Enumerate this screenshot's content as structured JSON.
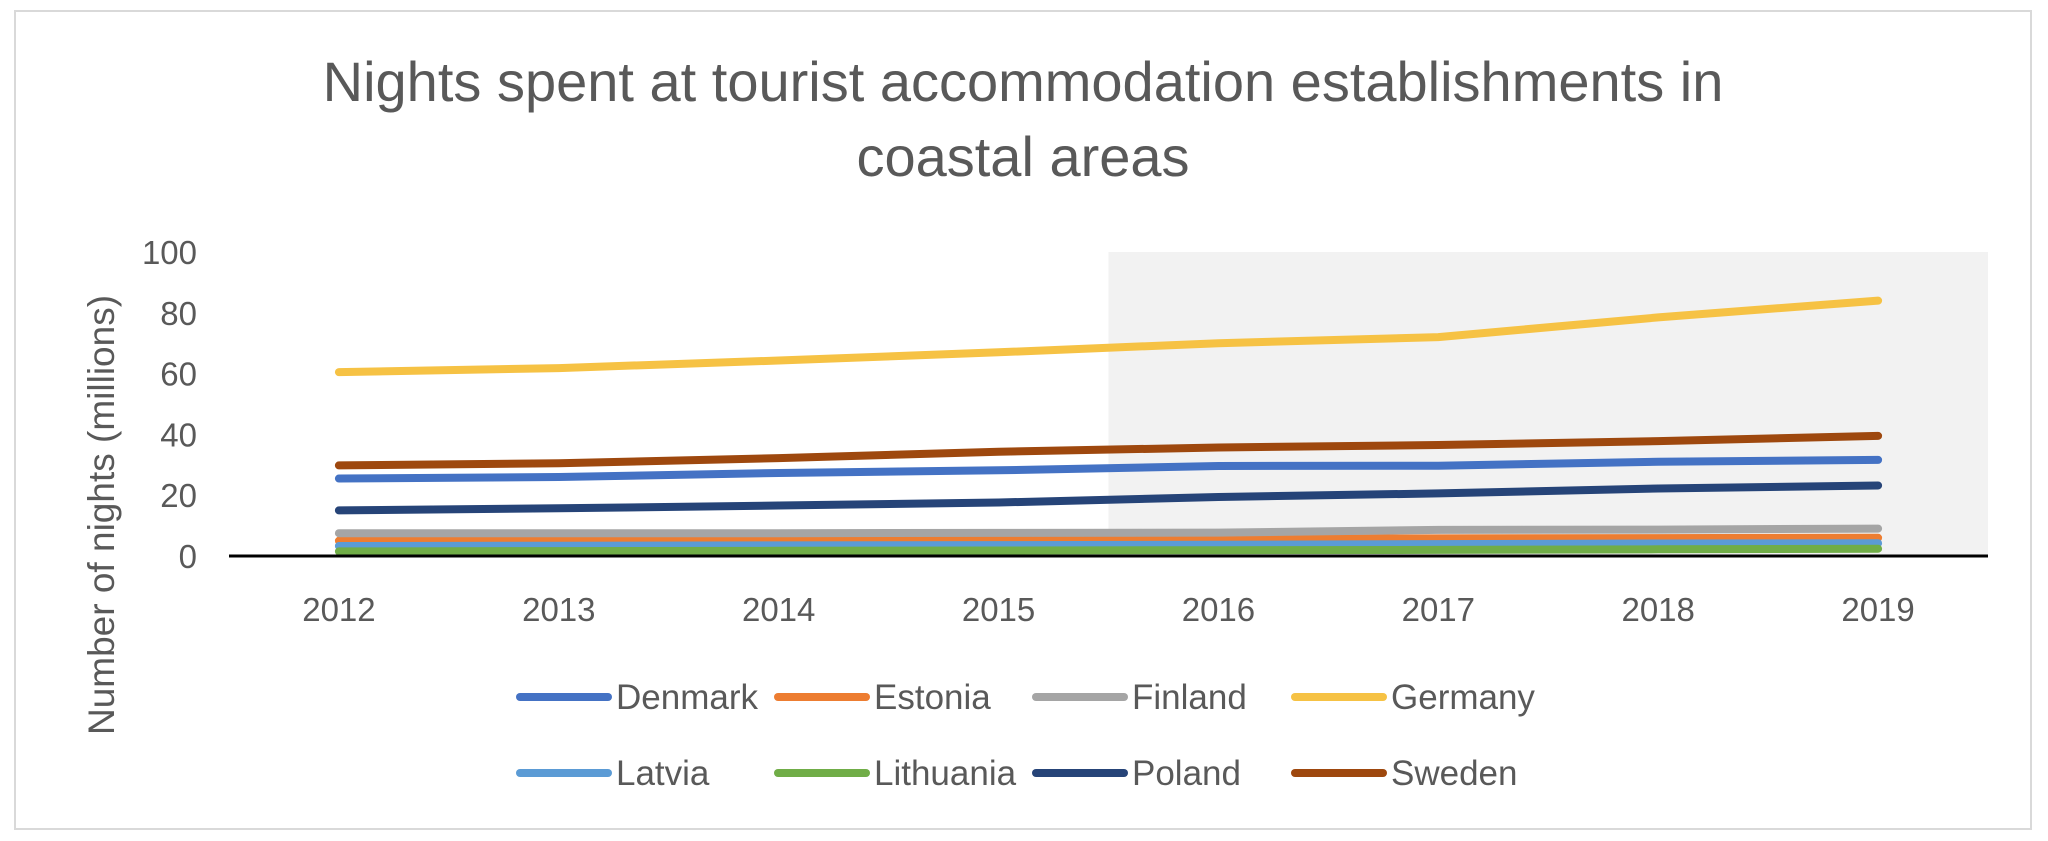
{
  "chart_data": {
    "type": "line",
    "title": "Nights spent at tourist accommodation establishments in coastal areas",
    "title_lines": [
      "Nights spent at tourist accommodation establishments in",
      "coastal areas"
    ],
    "xlabel": "",
    "ylabel": "Number of nights (millions)",
    "ylim": [
      0,
      100
    ],
    "yticks": [
      0,
      20,
      40,
      60,
      80,
      100
    ],
    "categories": [
      "2012",
      "2013",
      "2014",
      "2015",
      "2016",
      "2017",
      "2018",
      "2019"
    ],
    "shaded_region": {
      "from_between": [
        "2015",
        "2016"
      ],
      "to": "end",
      "color": "#f2f2f2"
    },
    "legend_position": "bottom",
    "series": [
      {
        "name": "Denmark",
        "color": "#4472c4",
        "values": [
          25.5,
          26,
          27.3,
          28.2,
          29.6,
          29.7,
          31,
          31.6
        ]
      },
      {
        "name": "Estonia",
        "color": "#ed7d31",
        "values": [
          5,
          5.2,
          5.3,
          5.5,
          5.6,
          5.8,
          5.9,
          6
        ]
      },
      {
        "name": "Finland",
        "color": "#a5a5a5",
        "values": [
          7.5,
          7.5,
          7.5,
          7.6,
          7.7,
          8.6,
          8.7,
          9
        ]
      },
      {
        "name": "Germany",
        "color": "#f6c244",
        "values": [
          60.5,
          61.8,
          64.3,
          67,
          70,
          72,
          78.5,
          84
        ]
      },
      {
        "name": "Latvia",
        "color": "#5b9bd5",
        "values": [
          3.3,
          3.4,
          3.5,
          3.6,
          3.7,
          3.9,
          4.1,
          4.2
        ]
      },
      {
        "name": "Lithuania",
        "color": "#70ad47",
        "values": [
          1.5,
          1.6,
          1.7,
          1.8,
          1.9,
          2,
          2.2,
          2.4
        ]
      },
      {
        "name": "Poland",
        "color": "#264478",
        "values": [
          15,
          15.7,
          16.6,
          17.6,
          19.4,
          20.6,
          22.2,
          23.2
        ]
      },
      {
        "name": "Sweden",
        "color": "#9e480e",
        "values": [
          29.8,
          30.5,
          32.2,
          34.3,
          35.7,
          36.5,
          37.8,
          39.5
        ]
      }
    ]
  }
}
